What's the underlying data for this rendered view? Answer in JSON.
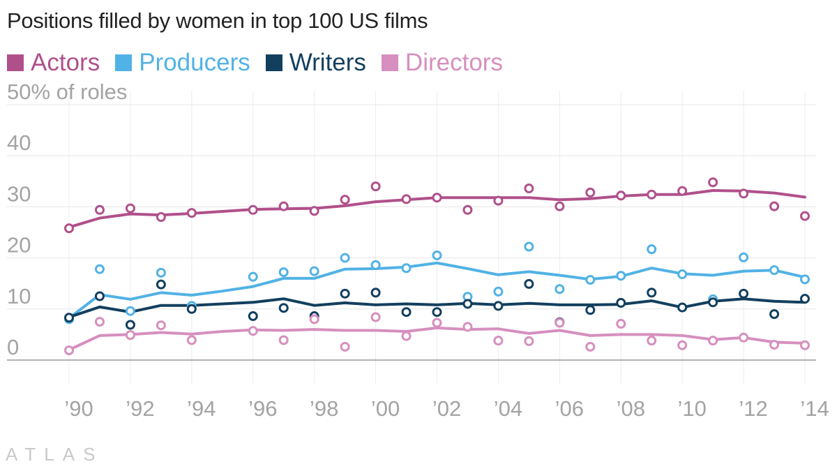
{
  "chart_data": {
    "type": "line",
    "title": "Positions filled by women in top 100 US films",
    "ylabel": "50% of roles",
    "ylim": [
      0,
      50
    ],
    "yticks": [
      0,
      10,
      20,
      30,
      40,
      50
    ],
    "ytick_labels": [
      "0",
      "10",
      "20",
      "30",
      "40",
      "50% of roles"
    ],
    "xlim": [
      1990,
      2014
    ],
    "xticks": [
      1990,
      1992,
      1994,
      1996,
      1998,
      2000,
      2002,
      2004,
      2006,
      2008,
      2010,
      2012,
      2014
    ],
    "xtick_labels": [
      "’90",
      "’92",
      "’94",
      "’96",
      "’98",
      "’00",
      "’02",
      "’04",
      "’06",
      "’08",
      "’10",
      "’12",
      "’14"
    ],
    "series": [
      {
        "name": "Actors",
        "color": "#b0508b",
        "trend": [
          [
            1990,
            26.0
          ],
          [
            1991,
            27.8
          ],
          [
            1992,
            28.6
          ],
          [
            1993,
            28.4
          ],
          [
            1994,
            28.7
          ],
          [
            1995,
            29.1
          ],
          [
            1996,
            29.5
          ],
          [
            1997,
            29.6
          ],
          [
            1998,
            29.7
          ],
          [
            1999,
            30.2
          ],
          [
            2000,
            31.0
          ],
          [
            2001,
            31.4
          ],
          [
            2002,
            31.8
          ],
          [
            2003,
            31.8
          ],
          [
            2004,
            31.8
          ],
          [
            2005,
            31.8
          ],
          [
            2006,
            31.4
          ],
          [
            2007,
            31.6
          ],
          [
            2008,
            32.1
          ],
          [
            2009,
            32.4
          ],
          [
            2010,
            32.4
          ],
          [
            2011,
            33.2
          ],
          [
            2012,
            33.1
          ],
          [
            2013,
            32.7
          ],
          [
            2014,
            31.9
          ]
        ],
        "points": [
          [
            1990,
            25.8
          ],
          [
            1991,
            29.4
          ],
          [
            1992,
            29.7
          ],
          [
            1993,
            28.0
          ],
          [
            1994,
            28.8
          ],
          [
            1996,
            29.4
          ],
          [
            1997,
            30.1
          ],
          [
            1998,
            29.2
          ],
          [
            1999,
            31.4
          ],
          [
            2000,
            34.0
          ],
          [
            2001,
            31.5
          ],
          [
            2002,
            31.8
          ],
          [
            2003,
            29.4
          ],
          [
            2004,
            31.2
          ],
          [
            2005,
            33.6
          ],
          [
            2006,
            30.1
          ],
          [
            2007,
            32.8
          ],
          [
            2008,
            32.2
          ],
          [
            2009,
            32.4
          ],
          [
            2010,
            33.1
          ],
          [
            2011,
            34.8
          ],
          [
            2012,
            32.6
          ],
          [
            2013,
            30.1
          ],
          [
            2014,
            28.2
          ]
        ]
      },
      {
        "name": "Producers",
        "color": "#51b2e5",
        "trend": [
          [
            1990,
            8.2
          ],
          [
            1991,
            12.8
          ],
          [
            1992,
            11.9
          ],
          [
            1993,
            13.2
          ],
          [
            1994,
            12.7
          ],
          [
            1995,
            13.5
          ],
          [
            1996,
            14.4
          ],
          [
            1997,
            16.0
          ],
          [
            1998,
            16.0
          ],
          [
            1999,
            17.8
          ],
          [
            2000,
            17.9
          ],
          [
            2001,
            18.2
          ],
          [
            2002,
            19.0
          ],
          [
            2003,
            17.9
          ],
          [
            2004,
            16.7
          ],
          [
            2005,
            17.3
          ],
          [
            2006,
            16.6
          ],
          [
            2007,
            15.8
          ],
          [
            2008,
            16.4
          ],
          [
            2009,
            18.0
          ],
          [
            2010,
            16.9
          ],
          [
            2011,
            16.6
          ],
          [
            2012,
            17.4
          ],
          [
            2013,
            17.6
          ],
          [
            2014,
            16.2
          ]
        ],
        "points": [
          [
            1990,
            8.0
          ],
          [
            1991,
            17.8
          ],
          [
            1992,
            9.6
          ],
          [
            1993,
            17.1
          ],
          [
            1994,
            10.6
          ],
          [
            1996,
            16.3
          ],
          [
            1997,
            17.2
          ],
          [
            1998,
            17.4
          ],
          [
            1999,
            20.0
          ],
          [
            2000,
            18.6
          ],
          [
            2001,
            18.0
          ],
          [
            2002,
            20.5
          ],
          [
            2003,
            12.4
          ],
          [
            2004,
            13.4
          ],
          [
            2005,
            22.2
          ],
          [
            2006,
            13.9
          ],
          [
            2007,
            15.7
          ],
          [
            2008,
            16.5
          ],
          [
            2009,
            21.7
          ],
          [
            2010,
            16.8
          ],
          [
            2011,
            11.9
          ],
          [
            2012,
            20.1
          ],
          [
            2013,
            17.6
          ],
          [
            2014,
            15.8
          ]
        ]
      },
      {
        "name": "Writers",
        "color": "#133f5e",
        "trend": [
          [
            1990,
            8.4
          ],
          [
            1991,
            10.4
          ],
          [
            1992,
            9.4
          ],
          [
            1993,
            10.7
          ],
          [
            1994,
            10.7
          ],
          [
            1995,
            11.0
          ],
          [
            1996,
            11.3
          ],
          [
            1997,
            12.0
          ],
          [
            1998,
            10.7
          ],
          [
            1999,
            11.2
          ],
          [
            2000,
            10.8
          ],
          [
            2001,
            11.0
          ],
          [
            2002,
            10.8
          ],
          [
            2003,
            11.1
          ],
          [
            2004,
            10.8
          ],
          [
            2005,
            11.1
          ],
          [
            2006,
            10.8
          ],
          [
            2007,
            10.8
          ],
          [
            2008,
            10.9
          ],
          [
            2009,
            11.6
          ],
          [
            2010,
            10.3
          ],
          [
            2011,
            11.5
          ],
          [
            2012,
            12.0
          ],
          [
            2013,
            11.5
          ],
          [
            2014,
            11.3
          ]
        ],
        "points": [
          [
            1990,
            8.3
          ],
          [
            1991,
            12.5
          ],
          [
            1992,
            6.9
          ],
          [
            1993,
            14.8
          ],
          [
            1994,
            10.0
          ],
          [
            1996,
            8.6
          ],
          [
            1997,
            10.2
          ],
          [
            1998,
            8.6
          ],
          [
            1999,
            13.0
          ],
          [
            2000,
            13.2
          ],
          [
            2001,
            9.4
          ],
          [
            2002,
            9.4
          ],
          [
            2003,
            11.0
          ],
          [
            2004,
            10.6
          ],
          [
            2005,
            14.9
          ],
          [
            2006,
            7.4
          ],
          [
            2007,
            9.8
          ],
          [
            2008,
            11.2
          ],
          [
            2009,
            13.2
          ],
          [
            2010,
            10.3
          ],
          [
            2011,
            11.3
          ],
          [
            2012,
            13.0
          ],
          [
            2013,
            9.0
          ],
          [
            2014,
            12.0
          ]
        ]
      },
      {
        "name": "Directors",
        "color": "#d68fbe",
        "trend": [
          [
            1990,
            2.0
          ],
          [
            1991,
            4.8
          ],
          [
            1992,
            5.0
          ],
          [
            1993,
            5.4
          ],
          [
            1994,
            5.1
          ],
          [
            1995,
            5.6
          ],
          [
            1996,
            5.9
          ],
          [
            1997,
            5.8
          ],
          [
            1998,
            6.0
          ],
          [
            1999,
            5.8
          ],
          [
            2000,
            5.8
          ],
          [
            2001,
            5.6
          ],
          [
            2002,
            6.3
          ],
          [
            2003,
            6.0
          ],
          [
            2004,
            6.1
          ],
          [
            2005,
            5.2
          ],
          [
            2006,
            5.8
          ],
          [
            2007,
            4.8
          ],
          [
            2008,
            5.0
          ],
          [
            2009,
            5.0
          ],
          [
            2010,
            4.8
          ],
          [
            2011,
            4.0
          ],
          [
            2012,
            4.4
          ],
          [
            2013,
            3.5
          ],
          [
            2014,
            3.3
          ]
        ],
        "points": [
          [
            1990,
            1.9
          ],
          [
            1991,
            7.5
          ],
          [
            1992,
            4.9
          ],
          [
            1993,
            6.8
          ],
          [
            1994,
            3.9
          ],
          [
            1996,
            5.7
          ],
          [
            1997,
            3.9
          ],
          [
            1998,
            8.0
          ],
          [
            1999,
            2.6
          ],
          [
            2000,
            8.4
          ],
          [
            2001,
            4.7
          ],
          [
            2002,
            7.3
          ],
          [
            2003,
            6.5
          ],
          [
            2004,
            3.8
          ],
          [
            2005,
            3.7
          ],
          [
            2006,
            7.3
          ],
          [
            2007,
            2.6
          ],
          [
            2008,
            7.1
          ],
          [
            2009,
            3.8
          ],
          [
            2010,
            2.9
          ],
          [
            2011,
            3.8
          ],
          [
            2012,
            4.4
          ],
          [
            2013,
            3.0
          ],
          [
            2014,
            2.9
          ]
        ]
      }
    ]
  },
  "branding": {
    "logo_text": "ATLAS"
  }
}
